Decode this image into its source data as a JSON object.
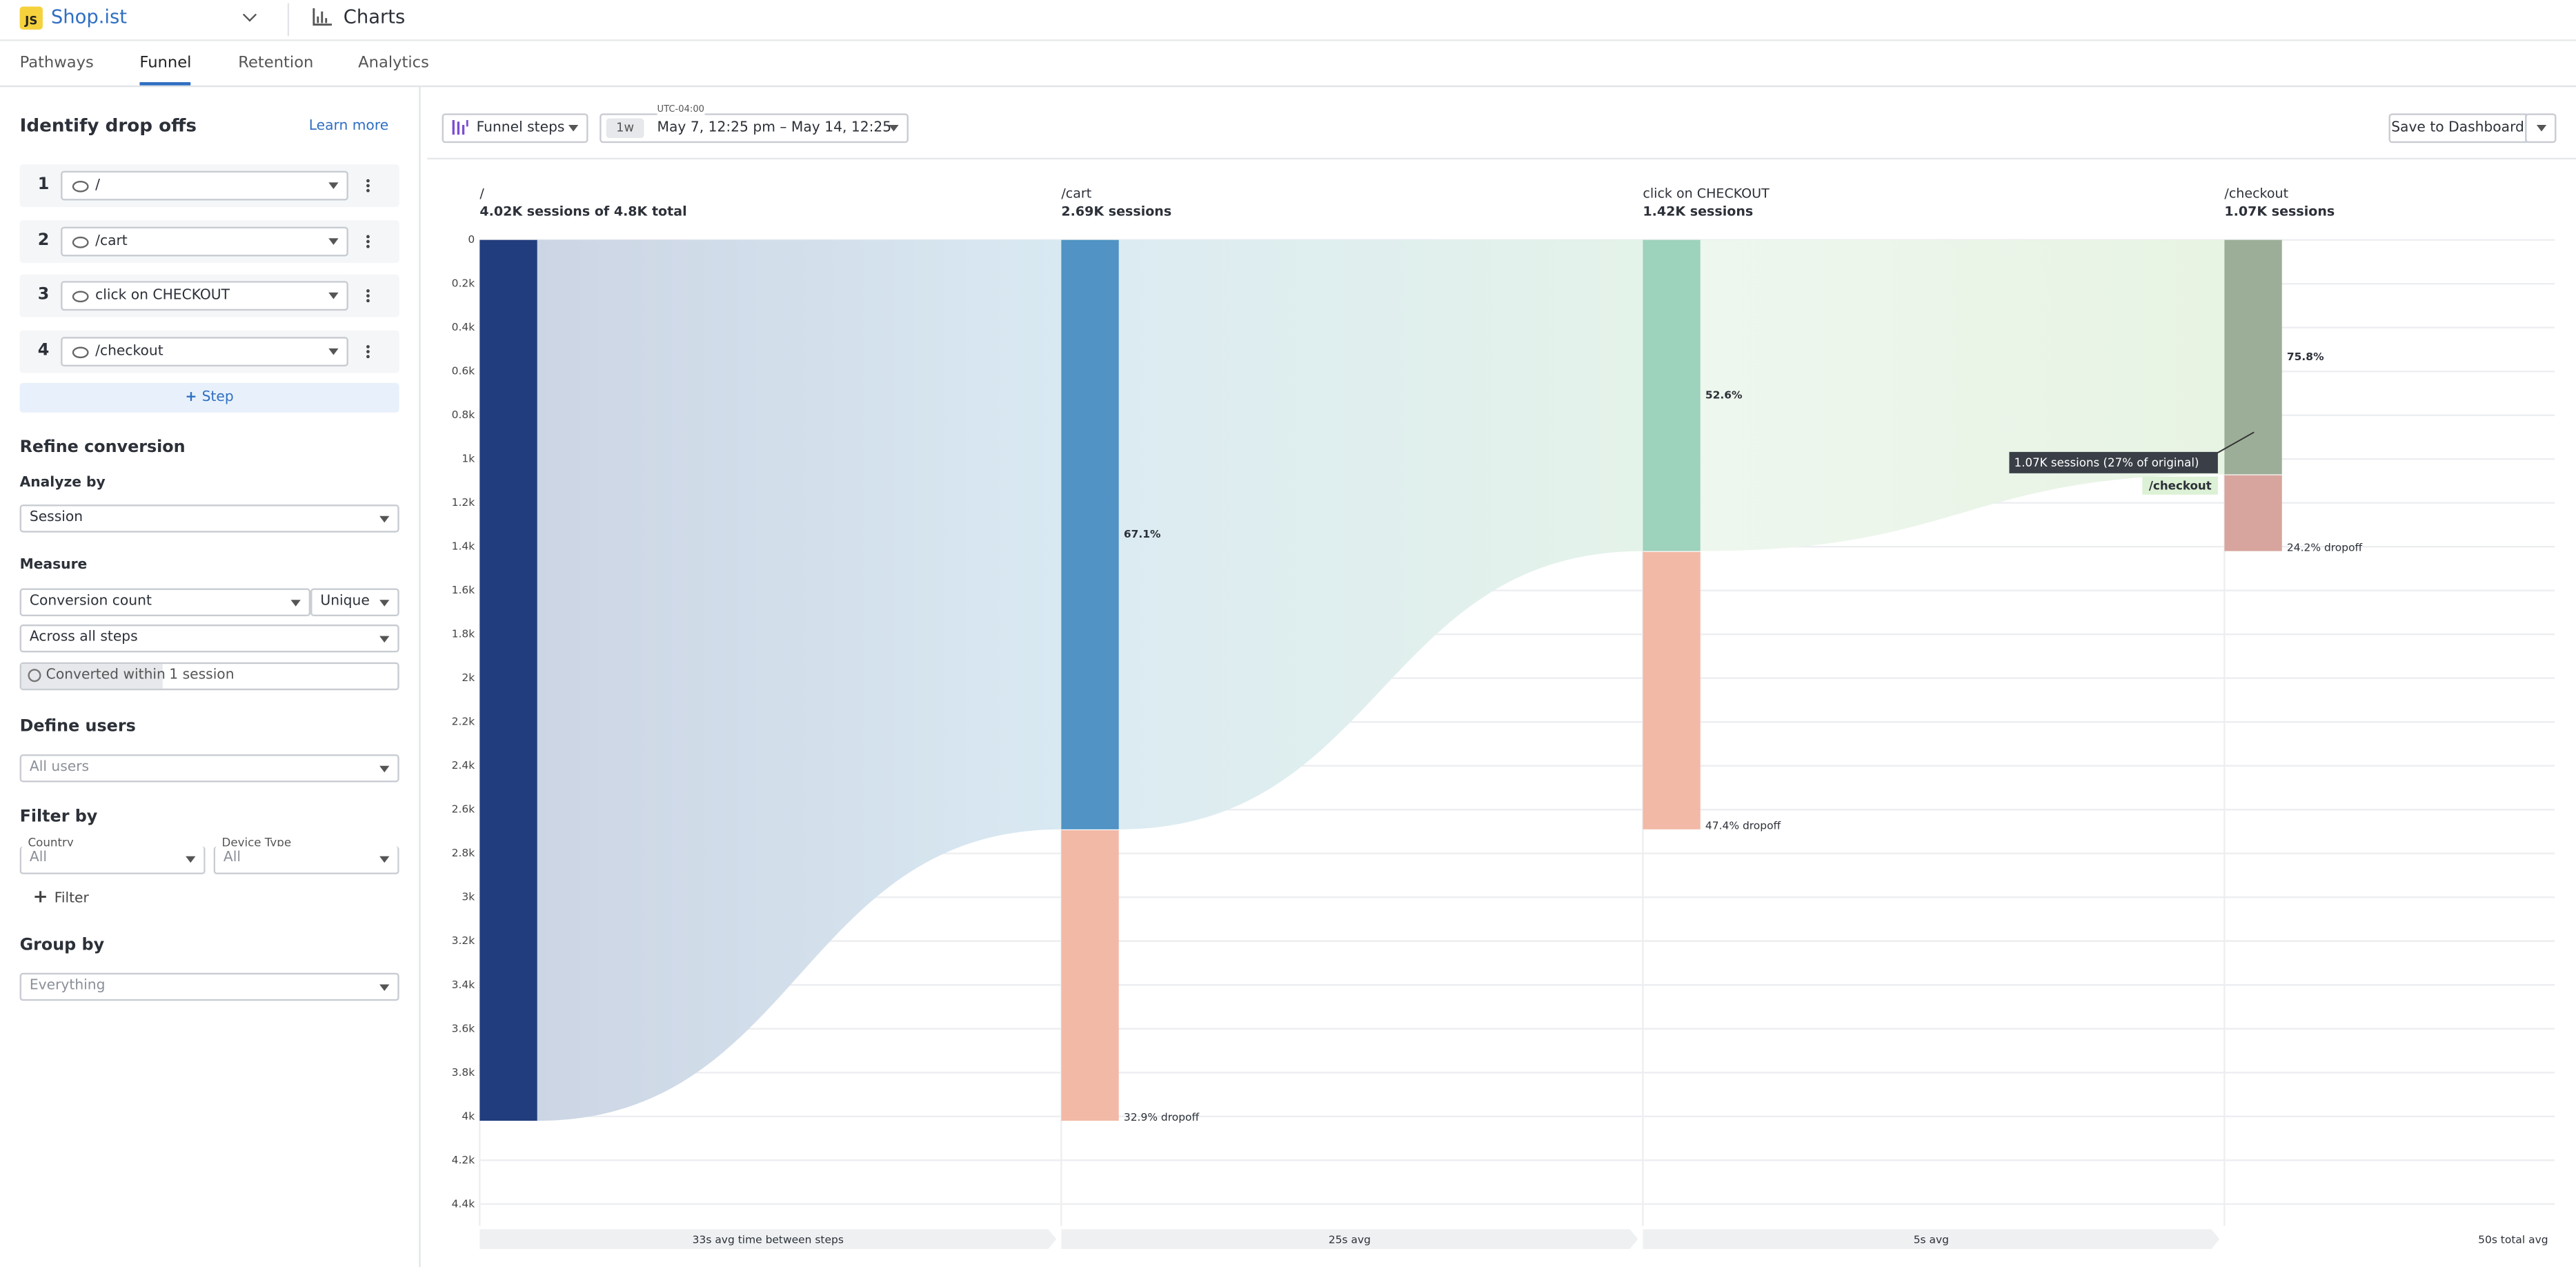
{
  "header": {
    "logo": "JS",
    "app": "Shop.ist",
    "section": "Charts"
  },
  "tabs": [
    "Pathways",
    "Funnel",
    "Retention",
    "Analytics"
  ],
  "toolbar": {
    "funnel_steps": "Funnel steps",
    "timezone": "UTC-04:00",
    "range_short": "1w",
    "range": "May 7, 12:25 pm – May 14, 12:25 p...",
    "save": "Save to Dashboard"
  },
  "sidebar": {
    "title": "Identify drop offs",
    "learn_more": "Learn more",
    "step_numbers": [
      "1",
      "2",
      "3",
      "4"
    ],
    "add_step": "Step",
    "refine": "Refine conversion",
    "analyze_by": "Analyze by",
    "analyze_value": "Session",
    "measure": "Measure",
    "measure_value": "Conversion count",
    "measure_mode": "Unique",
    "across": "Across all steps",
    "converted_within": "Converted within",
    "converted_value": "1 session",
    "define_users": "Define users",
    "users_value": "All users",
    "filter_by": "Filter by",
    "country": "Country",
    "country_value": "All",
    "device_type": "Device Type",
    "device_value": "All",
    "add_filter": "Filter",
    "group_by": "Group by",
    "group_value": "Everything"
  },
  "chart_data": {
    "type": "funnel",
    "categories": [
      "/",
      "/cart",
      "click on CHECKOUT",
      "/checkout"
    ],
    "step_labels": [
      "4.02K sessions of 4.8K total",
      "2.69K sessions",
      "1.42K sessions",
      "1.07K sessions"
    ],
    "values": [
      4020,
      2690,
      1420,
      1070
    ],
    "value_labels": [
      null,
      "67.1%",
      "52.6%",
      "75.8%"
    ],
    "colors": [
      "#213d7d",
      "#5093c4",
      "#9dd2bc",
      "#9cae98"
    ],
    "dropoffs": [
      null,
      1330,
      1270,
      350
    ],
    "dropoff_labels": [
      null,
      "32.9% dropoff",
      "47.4% dropoff",
      "24.2% dropoff"
    ],
    "dropoff_colors": [
      null,
      "#f2b9a6",
      "#f2b9a6",
      "#d7a59d"
    ],
    "ylim": [
      0,
      4500
    ],
    "yticks": [
      0,
      {
        "value": 200,
        "label": "0.2k"
      },
      {
        "value": 400,
        "label": "0.4k"
      },
      {
        "value": 600,
        "label": "0.6k"
      },
      {
        "value": 800,
        "label": "0.8k"
      },
      {
        "value": 1000,
        "label": "1k"
      },
      {
        "value": 1200,
        "label": "1.2k"
      },
      {
        "value": 1400,
        "label": "1.4k"
      },
      {
        "value": 1600,
        "label": "1.6k"
      },
      {
        "value": 1800,
        "label": "1.8k"
      },
      {
        "value": 2000,
        "label": "2k"
      },
      {
        "value": 2200,
        "label": "2.2k"
      },
      {
        "value": 2400,
        "label": "2.4k"
      },
      {
        "value": 2600,
        "label": "2.6k"
      },
      {
        "value": 2800,
        "label": "2.8k"
      },
      {
        "value": 3000,
        "label": "3k"
      },
      {
        "value": 3200,
        "label": "3.2k"
      },
      {
        "value": 3400,
        "label": "3.4k"
      },
      {
        "value": 3600,
        "label": "3.6k"
      },
      {
        "value": 3800,
        "label": "3.8k"
      },
      {
        "value": 4000,
        "label": "4k"
      },
      {
        "value": 4200,
        "label": "4.2k"
      },
      {
        "value": 4400,
        "label": "4.4k"
      }
    ],
    "grid": true,
    "time_labels": [
      "33s avg time between steps",
      "25s avg",
      "5s avg"
    ],
    "total_time": "50s total avg",
    "tooltip": "1.07K sessions (27% of original)"
  }
}
